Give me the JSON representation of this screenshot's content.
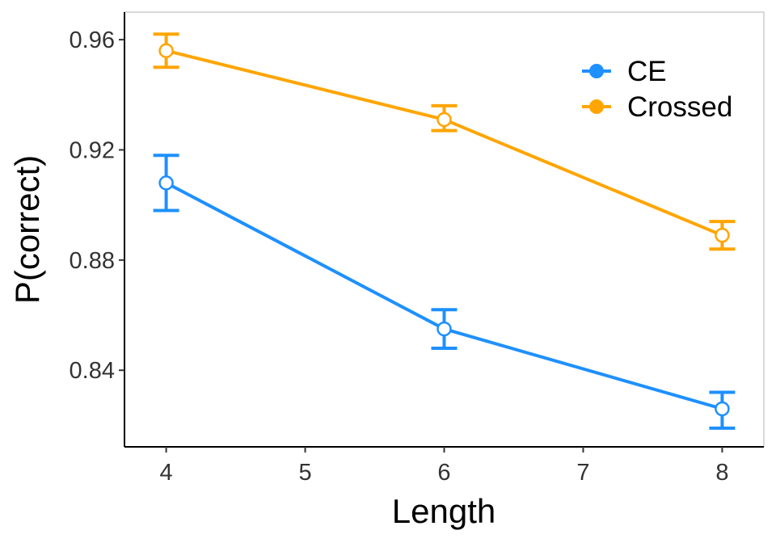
{
  "chart_data": {
    "type": "line",
    "xlabel": "Length",
    "ylabel": "P(correct)",
    "xlim": [
      3.7,
      8.3
    ],
    "ylim": [
      0.8122,
      0.97
    ],
    "x_ticks": [
      4,
      5,
      6,
      7,
      8
    ],
    "x_tick_labels": [
      "4",
      "5",
      "6",
      "7",
      "8"
    ],
    "y_ticks": [
      0.84,
      0.88,
      0.92,
      0.96
    ],
    "y_tick_labels": [
      "0.84",
      "0.88",
      "0.92",
      "0.96"
    ],
    "grid": false,
    "legend_position": "top-right",
    "series": [
      {
        "name": "CE",
        "color": "#1E90FF",
        "x": [
          4,
          6,
          8
        ],
        "y": [
          0.908,
          0.855,
          0.826
        ],
        "err_low": [
          0.898,
          0.848,
          0.819
        ],
        "err_high": [
          0.918,
          0.862,
          0.832
        ]
      },
      {
        "name": "Crossed",
        "color": "#FFA500",
        "x": [
          4,
          6,
          8
        ],
        "y": [
          0.956,
          0.931,
          0.889
        ],
        "err_low": [
          0.95,
          0.927,
          0.884
        ],
        "err_high": [
          0.962,
          0.936,
          0.894
        ]
      }
    ]
  }
}
